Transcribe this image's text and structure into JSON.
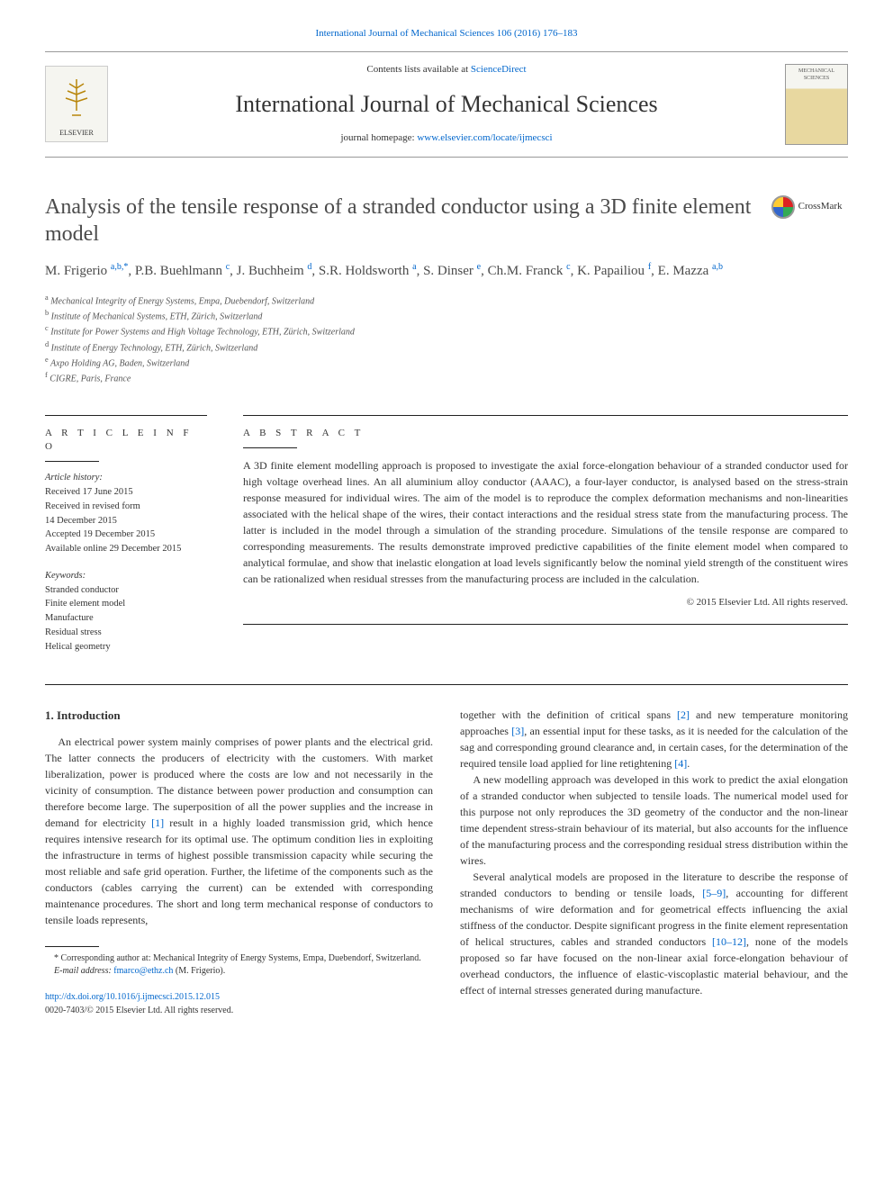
{
  "top_link": {
    "journal": "International Journal of Mechanical Sciences 106 (2016) 176–183"
  },
  "header": {
    "contents_prefix": "Contents lists available at ",
    "contents_link": "ScienceDirect",
    "journal_title": "International Journal of Mechanical Sciences",
    "homepage_prefix": "journal homepage: ",
    "homepage_link": "www.elsevier.com/locate/ijmecsci",
    "elsevier_label": "ELSEVIER",
    "cover_label": "MECHANICAL SCIENCES"
  },
  "crossmark": {
    "label": "CrossMark"
  },
  "article": {
    "title": "Analysis of the tensile response of a stranded conductor using a 3D finite element model",
    "authors_html": "M. Frigerio <sup>a,b,*</sup>, P.B. Buehlmann <sup>c</sup>, J. Buchheim <sup>d</sup>, S.R. Holdsworth <sup>a</sup>, S. Dinser <sup>e</sup>, Ch.M. Franck <sup>c</sup>, K. Papailiou <sup>f</sup>, E. Mazza <sup>a,b</sup>",
    "affiliations": [
      {
        "sup": "a",
        "text": "Mechanical Integrity of Energy Systems, Empa, Duebendorf, Switzerland"
      },
      {
        "sup": "b",
        "text": "Institute of Mechanical Systems, ETH, Zürich, Switzerland"
      },
      {
        "sup": "c",
        "text": "Institute for Power Systems and High Voltage Technology, ETH, Zürich, Switzerland"
      },
      {
        "sup": "d",
        "text": "Institute of Energy Technology, ETH, Zürich, Switzerland"
      },
      {
        "sup": "e",
        "text": "Axpo Holding AG, Baden, Switzerland"
      },
      {
        "sup": "f",
        "text": "CIGRE, Paris, France"
      }
    ]
  },
  "info": {
    "heading": "A R T I C L E  I N F O",
    "history_label": "Article history:",
    "history": [
      "Received 17 June 2015",
      "Received in revised form",
      "14 December 2015",
      "Accepted 19 December 2015",
      "Available online 29 December 2015"
    ],
    "keywords_label": "Keywords:",
    "keywords": [
      "Stranded conductor",
      "Finite element model",
      "Manufacture",
      "Residual stress",
      "Helical geometry"
    ]
  },
  "abstract": {
    "heading": "A B S T R A C T",
    "text": "A 3D finite element modelling approach is proposed to investigate the axial force-elongation behaviour of a stranded conductor used for high voltage overhead lines. An all aluminium alloy conductor (AAAC), a four-layer conductor, is analysed based on the stress-strain response measured for individual wires. The aim of the model is to reproduce the complex deformation mechanisms and non-linearities associated with the helical shape of the wires, their contact interactions and the residual stress state from the manufacturing process. The latter is included in the model through a simulation of the stranding procedure. Simulations of the tensile response are compared to corresponding measurements. The results demonstrate improved predictive capabilities of the finite element model when compared to analytical formulae, and show that inelastic elongation at load levels significantly below the nominal yield strength of the constituent wires can be rationalized when residual stresses from the manufacturing process are included in the calculation.",
    "copyright": "© 2015 Elsevier Ltd. All rights reserved."
  },
  "body": {
    "section1_heading": "1.  Introduction",
    "p1": "An electrical power system mainly comprises of power plants and the electrical grid. The latter connects the producers of electricity with the customers. With market liberalization, power is produced where the costs are low and not necessarily in the vicinity of consumption. The distance between power production and consumption can therefore become large. The superposition of all the power supplies and the increase in demand for electricity [1] result in a highly loaded transmission grid, which hence requires intensive research for its optimal use. The optimum condition lies in exploiting the infrastructure in terms of highest possible transmission capacity while securing the most reliable and safe grid operation. Further, the lifetime of the components such as the conductors (cables carrying the current) can be extended with corresponding maintenance procedures. The short and long term mechanical response of conductors to tensile loads represents,",
    "p1b": "together with the definition of critical spans [2] and new temperature monitoring approaches [3], an essential input for these tasks, as it is needed for the calculation of the sag and corresponding ground clearance and, in certain cases, for the determination of the required tensile load applied for line retightening [4].",
    "p2": "A new modelling approach was developed in this work to predict the axial elongation of a stranded conductor when subjected to tensile loads. The numerical model used for this purpose not only reproduces the 3D geometry of the conductor and the non-linear time dependent stress-strain behaviour of its material, but also accounts for the influence of the manufacturing process and the corresponding residual stress distribution within the wires.",
    "p3": "Several analytical models are proposed in the literature to describe the response of stranded conductors to bending or tensile loads, [5–9], accounting for different mechanisms of wire deformation and for geometrical effects influencing the axial stiffness of the conductor. Despite significant progress in the finite element representation of helical structures, cables and stranded conductors [10–12], none of the models proposed so far have focused on the non-linear axial force-elongation behaviour of overhead conductors, the influence of elastic-viscoplastic material behaviour, and the effect of internal stresses generated during manufacture."
  },
  "footnotes": {
    "corr": "* Corresponding author at: Mechanical Integrity of Energy Systems, Empa, Duebendorf, Switzerland.",
    "email_label": "E-mail address: ",
    "email": "fmarco@ethz.ch",
    "email_suffix": " (M. Frigerio)."
  },
  "doi": {
    "link": "http://dx.doi.org/10.1016/j.ijmecsci.2015.12.015",
    "issn": "0020-7403/© 2015 Elsevier Ltd. All rights reserved."
  },
  "refs": {
    "r1": "[1]",
    "r2": "[2]",
    "r3": "[3]",
    "r4": "[4]",
    "r5_9": "[5–9]",
    "r10_12": "[10–12]"
  }
}
